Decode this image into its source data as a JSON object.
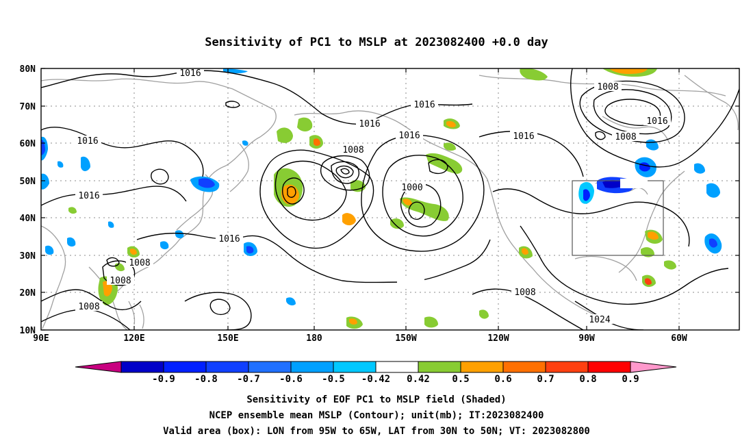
{
  "title": "Sensitivity of PC1 to MSLP at 2023082400 +0.0 day",
  "map": {
    "lat_labels": [
      "80N",
      "70N",
      "60N",
      "50N",
      "40N",
      "30N",
      "20N",
      "10N"
    ],
    "lon_labels": [
      "90E",
      "120E",
      "150E",
      "180",
      "150W",
      "120W",
      "90W",
      "60W"
    ],
    "lat_range": [
      10,
      80
    ],
    "lon_range_east": [
      90,
      314
    ],
    "grid": "dotted",
    "valid_box": {
      "lon_west": -95,
      "lon_east": -65,
      "lat_south": 30,
      "lat_north": 50
    },
    "contour_labels": [
      "1016",
      "1016",
      "1016",
      "1016",
      "1016",
      "1016",
      "1016",
      "1016",
      "1008",
      "1008",
      "1008",
      "1008",
      "1008",
      "1008",
      "1008",
      "1024",
      "1000",
      "1016"
    ],
    "shading_colors": {
      "neg": [
        "#0000c8",
        "#0020ff",
        "#1040ff",
        "#2070ff",
        "#00a0ff",
        "#00c8ff"
      ],
      "pos": [
        "#88cc33",
        "#ffa000",
        "#ff7000",
        "#ff4010",
        "#ff0000"
      ],
      "min_arrow": "#c80080",
      "max_arrow": "#ff99cc"
    },
    "contour_color": "#000000",
    "coast_color": "#a0a0a0"
  },
  "colorbar": {
    "labels": [
      "-0.9",
      "-0.8",
      "-0.7",
      "-0.6",
      "-0.5",
      "-0.42",
      "0.42",
      "0.5",
      "0.6",
      "0.7",
      "0.8",
      "0.9"
    ],
    "colors": [
      "#0000c8",
      "#0020ff",
      "#1040ff",
      "#2070ff",
      "#00a0ff",
      "#00c8ff",
      "#ffffff",
      "#88cc33",
      "#ffa000",
      "#ff7000",
      "#ff4010",
      "#ff0000"
    ]
  },
  "footer": {
    "line1": "Sensitivity of EOF PC1 to MSLP field (Shaded)",
    "line2": "NCEP ensemble mean MSLP (Contour); unit(mb); IT:2023082400",
    "line3": "Valid area (box): LON from 95W to 65W, LAT from 30N to 50N; VT: 2023082800"
  }
}
